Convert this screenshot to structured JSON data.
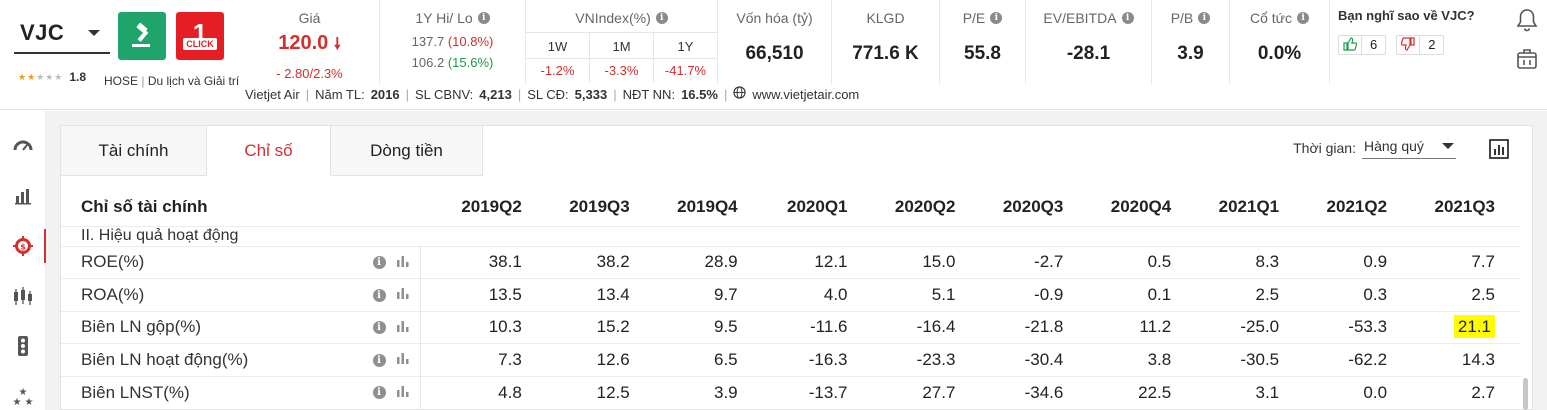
{
  "header": {
    "ticker": "VJC",
    "rating": "1.8",
    "exchange": "HOSE",
    "industry": "Du lịch và Giải trí",
    "price": {
      "label": "Giá",
      "value": "120.0",
      "change": "- 2.80/2.3%"
    },
    "hilo": {
      "label": "1Y Hi/ Lo",
      "hi": "137.7",
      "hi_pct": "(10.8%)",
      "lo": "106.2",
      "lo_pct": "(15.6%)"
    },
    "vnindex": {
      "label": "VNIndex(%)",
      "periods": [
        {
          "label": "1W",
          "value": "-1.2%"
        },
        {
          "label": "1M",
          "value": "-3.3%"
        },
        {
          "label": "1Y",
          "value": "-41.7%"
        }
      ]
    },
    "market_cap": {
      "label": "Vốn hóa (tỷ)",
      "value": "66,510"
    },
    "volume": {
      "label": "KLGD",
      "value": "771.6 K"
    },
    "pe": {
      "label": "P/E",
      "value": "55.8"
    },
    "ev_ebitda": {
      "label": "EV/EBITDA",
      "value": "-28.1"
    },
    "pb": {
      "label": "P/B",
      "value": "3.9"
    },
    "dividend": {
      "label": "Cổ tức",
      "value": "0.0%"
    },
    "opinion": {
      "question": "Bạn nghĩ sao về VJC?",
      "up": "6",
      "down": "2"
    },
    "company": {
      "name": "Vietjet Air",
      "year_label": "Năm TL:",
      "year": "2016",
      "staff_label": "SL CBNV:",
      "staff": "4,213",
      "shareholders_label": "SL CĐ:",
      "shareholders": "5,333",
      "foreign_label": "NĐT NN:",
      "foreign": "16.5%",
      "website": "www.vietjetair.com"
    },
    "colors": {
      "green_btn": "#1fa56b",
      "red_btn": "#e51e25",
      "negative": "#d32f2f",
      "positive": "#1a9b4b"
    }
  },
  "sidebar": {
    "items": [
      "dashboard-icon",
      "chart-grid-icon",
      "finance-icon",
      "candlestick-icon",
      "traffic-light-icon",
      "stars-icon"
    ],
    "active_index": 2
  },
  "tabs": [
    {
      "label": "Tài chính"
    },
    {
      "label": "Chỉ số"
    },
    {
      "label": "Dòng tiền"
    }
  ],
  "filter": {
    "label": "Thời gian:",
    "value": "Hàng quý"
  },
  "table": {
    "header_label": "Chỉ số tài chính",
    "columns": [
      "2019Q2",
      "2019Q3",
      "2019Q4",
      "2020Q1",
      "2020Q2",
      "2020Q3",
      "2020Q4",
      "2021Q1",
      "2021Q2",
      "2021Q3"
    ],
    "section": "II. Hiệu quả hoạt động",
    "rows": [
      {
        "name": "ROE(%)",
        "values": [
          "38.1",
          "38.2",
          "28.9",
          "12.1",
          "15.0",
          "-2.7",
          "0.5",
          "8.3",
          "0.9",
          "7.7"
        ]
      },
      {
        "name": "ROA(%)",
        "values": [
          "13.5",
          "13.4",
          "9.7",
          "4.0",
          "5.1",
          "-0.9",
          "0.1",
          "2.5",
          "0.3",
          "2.5"
        ]
      },
      {
        "name": "Biên LN gộp(%)",
        "values": [
          "10.3",
          "15.2",
          "9.5",
          "-11.6",
          "-16.4",
          "-21.8",
          "11.2",
          "-25.0",
          "-53.3",
          "21.1"
        ]
      },
      {
        "name": "Biên LN hoạt động(%)",
        "values": [
          "7.3",
          "12.6",
          "6.5",
          "-16.3",
          "-23.3",
          "-30.4",
          "3.8",
          "-30.5",
          "-62.2",
          "14.3"
        ]
      },
      {
        "name": "Biên LNST(%)",
        "values": [
          "4.8",
          "12.5",
          "3.9",
          "-13.7",
          "27.7",
          "-34.6",
          "22.5",
          "3.1",
          "0.0",
          "2.7"
        ]
      }
    ],
    "highlight": {
      "row": 2,
      "col": 9,
      "color": "#fffb00"
    }
  }
}
